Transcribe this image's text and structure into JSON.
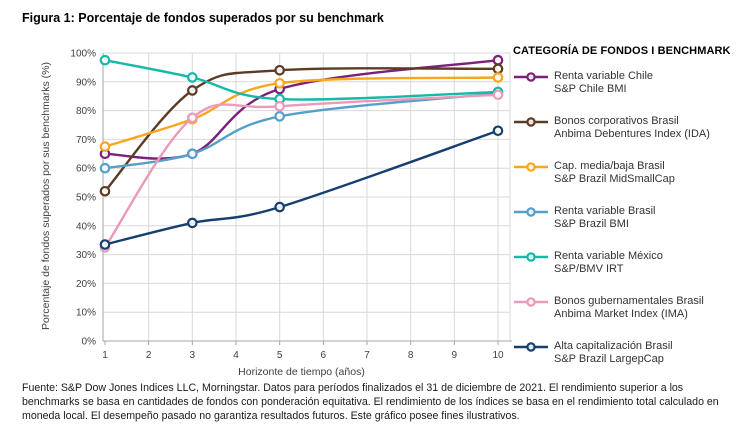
{
  "title": "Figura 1: Porcentaje de fondos superados por su benchmark",
  "chart_data": {
    "type": "line",
    "x": [
      1,
      3,
      5,
      10
    ],
    "xlabel": "Horizonte de tiempo (años)",
    "ylabel": "Porcentaje de fondos superados por sus benchmarks (%)",
    "xlim": [
      1,
      10
    ],
    "ylim": [
      0,
      100
    ],
    "x_ticks": [
      1,
      2,
      3,
      4,
      5,
      6,
      7,
      8,
      9,
      10
    ],
    "y_ticks": [
      0,
      10,
      20,
      30,
      40,
      50,
      60,
      70,
      80,
      90,
      100
    ],
    "y_tick_suffix": "%",
    "grid": true,
    "legend_position": "right",
    "legend_title": "CATEGORÍA DE FONDOS I BENCHMARK",
    "series": [
      {
        "name": "Renta variable Chile",
        "benchmark": "S&P Chile BMI",
        "color": "#7A2179",
        "values": [
          65,
          65,
          87.5,
          97.5
        ]
      },
      {
        "name": "Bonos corporativos Brasil",
        "benchmark": "Anbima Debentures Index (IDA)",
        "color": "#5D3B23",
        "values": [
          52,
          87,
          94,
          94.5
        ]
      },
      {
        "name": "Cap. media/baja Brasil",
        "benchmark": "S&P Brazil MidSmallCap",
        "color": "#F9A61F",
        "values": [
          67.5,
          77,
          89.5,
          91.5
        ]
      },
      {
        "name": "Renta variable Brasil",
        "benchmark": "S&P Brazil BMI",
        "color": "#55A0C8",
        "values": [
          60,
          65,
          78,
          86
        ]
      },
      {
        "name": "Renta variable México",
        "benchmark": "S&P/BMV IRT",
        "color": "#15B9A7",
        "values": [
          97.5,
          91.5,
          84,
          86.5
        ]
      },
      {
        "name": "Bonos gubernamentales Brasil",
        "benchmark": "Anbima Market Index (IMA)",
        "color": "#EB9ABC",
        "values": [
          32.5,
          77.5,
          81.5,
          85.5
        ]
      },
      {
        "name": "Alta capitalización Brasil",
        "benchmark": "S&P Brazil LargepCap",
        "color": "#153F6E",
        "values": [
          33.5,
          41,
          46.5,
          73
        ]
      }
    ],
    "colors": {
      "gridline": "#D9D9D9",
      "axis": "#A6A6A6",
      "tick_text": "#404040"
    }
  },
  "footer": "Fuente: S&P Dow Jones Indices LLC, Morningstar. Datos para períodos finalizados el 31 de diciembre de 2021. El rendimiento superior a los benchmarks se basa en cantidades de fondos con ponderación equitativa. El rendimiento de los índices se basa en el rendimiento total calculado en moneda local. El desempeño pasado no garantiza resultados futuros. Este gráfico posee fines ilustrativos."
}
